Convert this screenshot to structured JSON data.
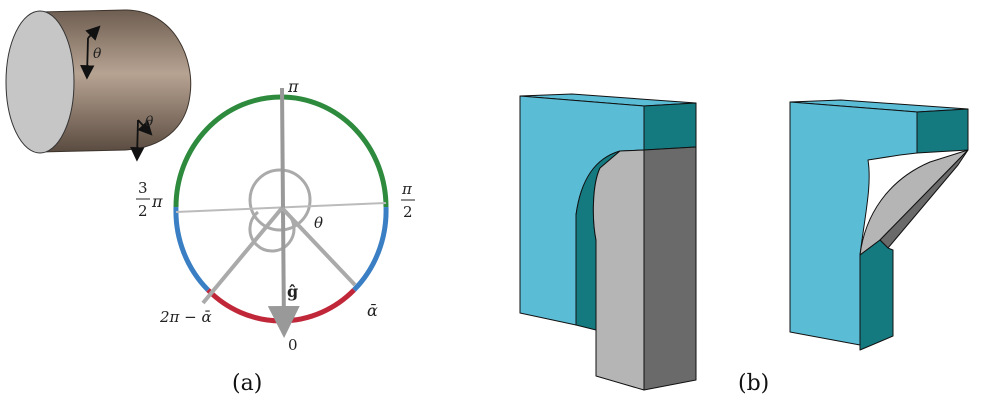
{
  "panel_a": {
    "caption": "(a)",
    "shape_labels": {
      "theta_top": "θ",
      "theta_bottom": "θ"
    },
    "dial_labels": {
      "pi": "π",
      "three_half_num": "3",
      "three_half_den": "2",
      "three_half_pi": "π",
      "half_pi_num": "π",
      "half_pi_den": "2",
      "theta": "θ",
      "g_hat": "ĝ",
      "zero": "0",
      "alpha_bar": "ᾱ",
      "two_pi_minus_alpha": "2π − ᾱ"
    },
    "colors": {
      "green_arc": "#2e8b3e",
      "blue_arc": "#3a7fc4",
      "red_arc": "#c0283a",
      "shape_fill": "#8b7766",
      "disk_fill": "#c9c9c9"
    }
  },
  "panel_b": {
    "caption": "(b)",
    "colors": {
      "light_blue": "#5bbcd6",
      "dark_teal": "#147a80",
      "light_gray": "#b5b5b5",
      "dark_gray": "#6a6a6a"
    }
  }
}
